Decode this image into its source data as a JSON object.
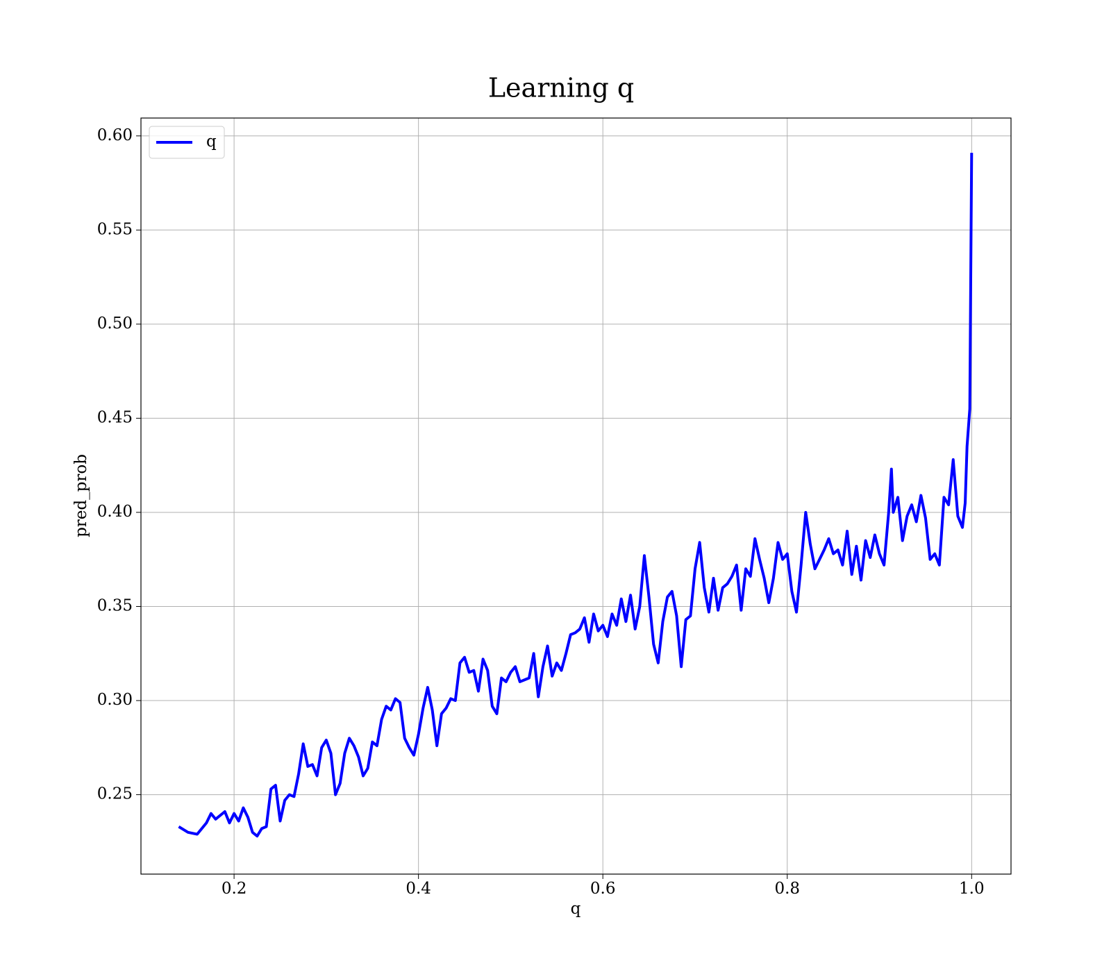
{
  "chart_data": {
    "type": "line",
    "title": "Learning q",
    "xlabel": "q",
    "ylabel": "pred_prob",
    "x": [
      0.14,
      0.15,
      0.16,
      0.17,
      0.175,
      0.18,
      0.19,
      0.195,
      0.2,
      0.205,
      0.21,
      0.215,
      0.22,
      0.225,
      0.23,
      0.235,
      0.24,
      0.245,
      0.25,
      0.255,
      0.26,
      0.265,
      0.27,
      0.275,
      0.28,
      0.285,
      0.29,
      0.295,
      0.3,
      0.305,
      0.31,
      0.315,
      0.32,
      0.325,
      0.33,
      0.335,
      0.34,
      0.345,
      0.35,
      0.355,
      0.36,
      0.365,
      0.37,
      0.375,
      0.38,
      0.385,
      0.39,
      0.395,
      0.4,
      0.405,
      0.41,
      0.415,
      0.42,
      0.425,
      0.43,
      0.435,
      0.44,
      0.445,
      0.45,
      0.455,
      0.46,
      0.465,
      0.47,
      0.475,
      0.48,
      0.485,
      0.49,
      0.495,
      0.5,
      0.505,
      0.51,
      0.515,
      0.52,
      0.525,
      0.53,
      0.535,
      0.54,
      0.545,
      0.55,
      0.555,
      0.56,
      0.565,
      0.57,
      0.575,
      0.58,
      0.585,
      0.59,
      0.595,
      0.6,
      0.605,
      0.61,
      0.615,
      0.62,
      0.625,
      0.63,
      0.635,
      0.64,
      0.645,
      0.65,
      0.655,
      0.66,
      0.665,
      0.67,
      0.675,
      0.68,
      0.685,
      0.69,
      0.695,
      0.7,
      0.705,
      0.71,
      0.715,
      0.72,
      0.725,
      0.73,
      0.735,
      0.74,
      0.745,
      0.75,
      0.755,
      0.76,
      0.765,
      0.77,
      0.775,
      0.78,
      0.785,
      0.79,
      0.795,
      0.8,
      0.805,
      0.81,
      0.815,
      0.82,
      0.825,
      0.83,
      0.835,
      0.84,
      0.845,
      0.85,
      0.855,
      0.86,
      0.865,
      0.87,
      0.875,
      0.88,
      0.885,
      0.89,
      0.895,
      0.9,
      0.905,
      0.91,
      0.913,
      0.915,
      0.92,
      0.925,
      0.93,
      0.935,
      0.94,
      0.945,
      0.95,
      0.955,
      0.96,
      0.965,
      0.97,
      0.975,
      0.98,
      0.985,
      0.99,
      0.993,
      0.995,
      0.998,
      1.0
    ],
    "series": [
      {
        "name": "q",
        "color": "#0000ff",
        "values": [
          0.233,
          0.23,
          0.229,
          0.235,
          0.24,
          0.237,
          0.241,
          0.235,
          0.24,
          0.236,
          0.243,
          0.238,
          0.23,
          0.228,
          0.232,
          0.233,
          0.253,
          0.255,
          0.236,
          0.247,
          0.25,
          0.249,
          0.261,
          0.277,
          0.265,
          0.266,
          0.26,
          0.275,
          0.279,
          0.272,
          0.25,
          0.256,
          0.272,
          0.28,
          0.276,
          0.27,
          0.26,
          0.264,
          0.278,
          0.276,
          0.29,
          0.297,
          0.295,
          0.301,
          0.299,
          0.28,
          0.275,
          0.271,
          0.282,
          0.296,
          0.307,
          0.295,
          0.276,
          0.293,
          0.296,
          0.301,
          0.3,
          0.32,
          0.323,
          0.315,
          0.316,
          0.305,
          0.322,
          0.316,
          0.297,
          0.293,
          0.312,
          0.31,
          0.315,
          0.318,
          0.31,
          0.311,
          0.312,
          0.325,
          0.302,
          0.318,
          0.329,
          0.313,
          0.32,
          0.316,
          0.325,
          0.335,
          0.336,
          0.338,
          0.344,
          0.331,
          0.346,
          0.337,
          0.34,
          0.334,
          0.346,
          0.34,
          0.354,
          0.342,
          0.356,
          0.338,
          0.35,
          0.377,
          0.355,
          0.33,
          0.32,
          0.342,
          0.355,
          0.358,
          0.345,
          0.318,
          0.343,
          0.345,
          0.37,
          0.384,
          0.36,
          0.347,
          0.365,
          0.348,
          0.36,
          0.362,
          0.366,
          0.372,
          0.348,
          0.37,
          0.366,
          0.386,
          0.375,
          0.365,
          0.352,
          0.365,
          0.384,
          0.375,
          0.378,
          0.358,
          0.347,
          0.372,
          0.4,
          0.383,
          0.37,
          0.375,
          0.38,
          0.386,
          0.378,
          0.38,
          0.372,
          0.39,
          0.367,
          0.382,
          0.364,
          0.385,
          0.376,
          0.388,
          0.378,
          0.372,
          0.4,
          0.423,
          0.4,
          0.408,
          0.385,
          0.398,
          0.404,
          0.395,
          0.409,
          0.397,
          0.375,
          0.378,
          0.372,
          0.408,
          0.404,
          0.428,
          0.398,
          0.392,
          0.405,
          0.435,
          0.455,
          0.591
        ]
      }
    ],
    "xlim": [
      0.099,
      1.0427
    ],
    "ylim": [
      0.2078,
      0.6095
    ],
    "xticks": [
      0.2,
      0.4,
      0.6,
      0.8,
      {
        "value": 1.0,
        "label": "1.0"
      }
    ],
    "yticks": [
      0.25,
      {
        "value": 0.3,
        "label": "0.30"
      },
      0.35,
      {
        "value": 0.4,
        "label": "0.40"
      },
      0.45,
      {
        "value": 0.5,
        "label": "0.50"
      },
      0.55,
      {
        "value": 0.6,
        "label": "0.60"
      }
    ],
    "grid": true,
    "legend": "upper left"
  }
}
